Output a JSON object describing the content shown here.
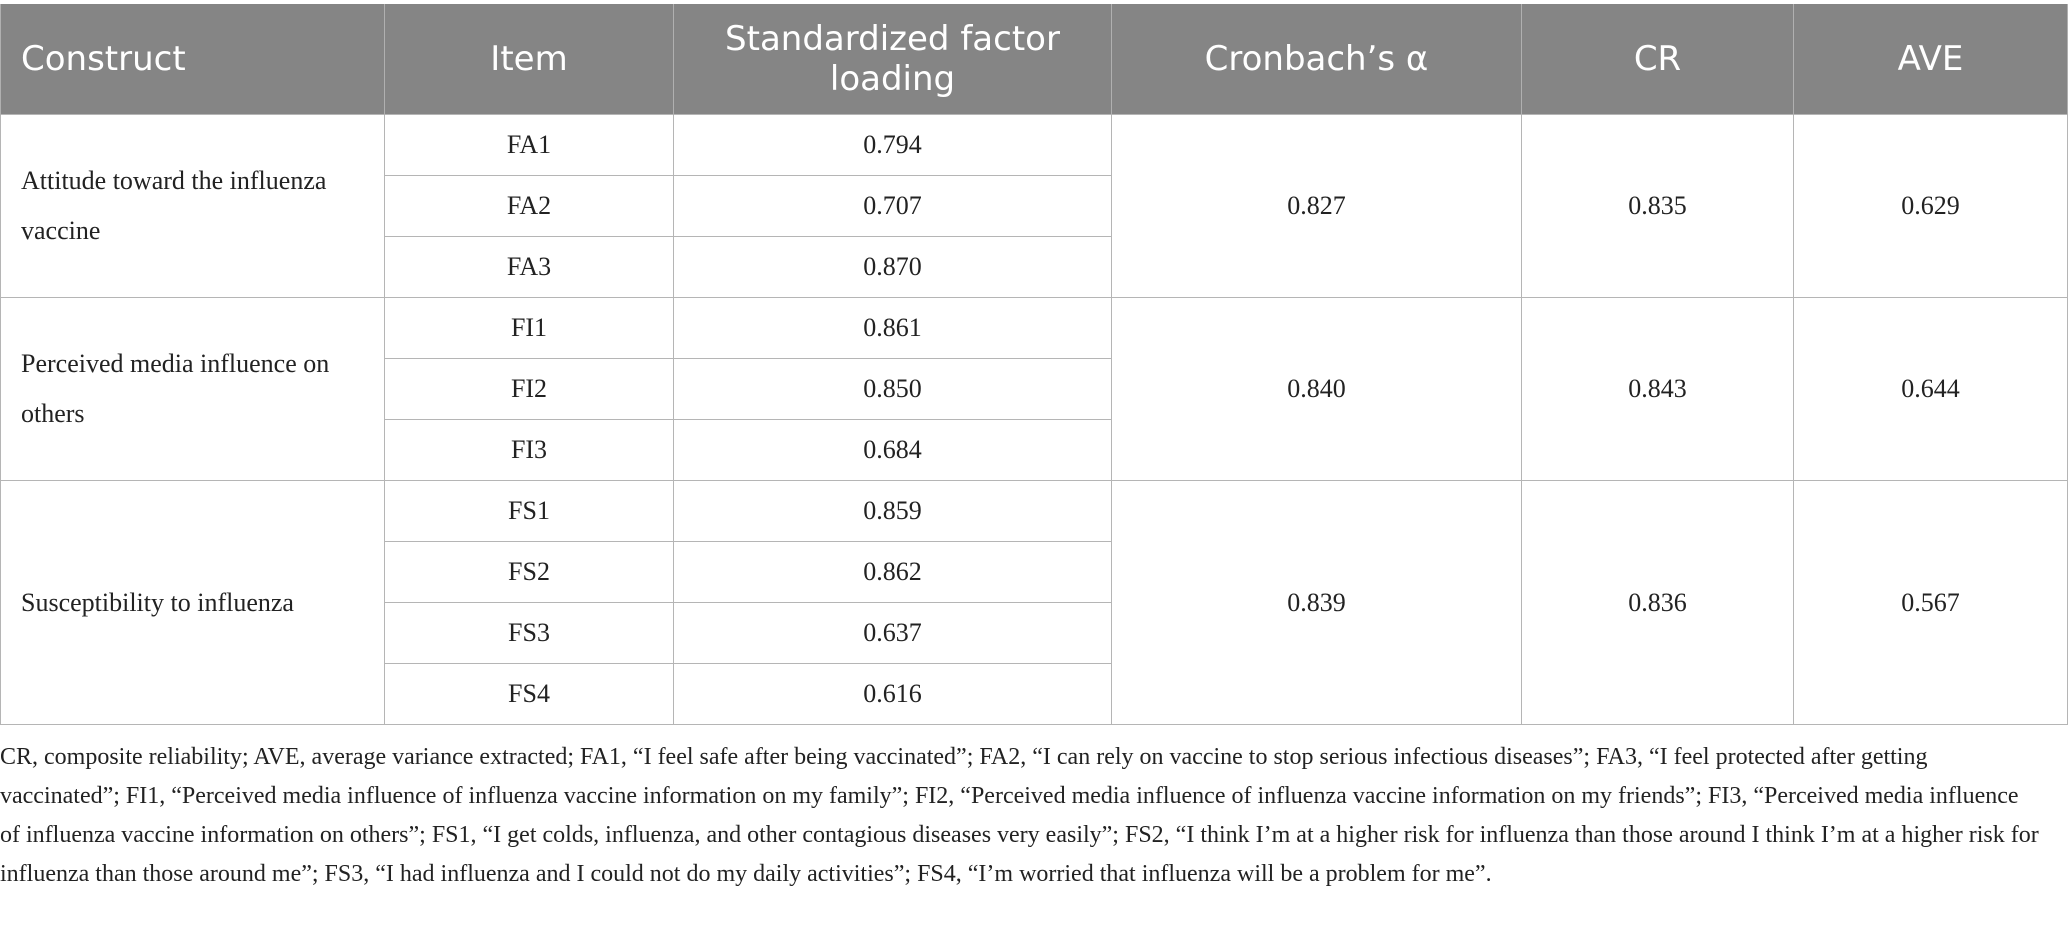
{
  "headers": {
    "construct": "Construct",
    "item": "Item",
    "loading_line1": "Standardized factor",
    "loading_line2": "loading",
    "alpha": "Cronbach’s α",
    "cr": "CR",
    "ave": "AVE"
  },
  "groups": [
    {
      "construct": "Attitude toward the influenza vaccine",
      "alpha": "0.827",
      "cr": "0.835",
      "ave": "0.629",
      "items": [
        {
          "item": "FA1",
          "loading": "0.794"
        },
        {
          "item": "FA2",
          "loading": "0.707"
        },
        {
          "item": "FA3",
          "loading": "0.870"
        }
      ]
    },
    {
      "construct": "Perceived media influence on others",
      "alpha": "0.840",
      "cr": "0.843",
      "ave": "0.644",
      "items": [
        {
          "item": "FI1",
          "loading": "0.861"
        },
        {
          "item": "FI2",
          "loading": "0.850"
        },
        {
          "item": "FI3",
          "loading": "0.684"
        }
      ]
    },
    {
      "construct": "Susceptibility to influenza",
      "alpha": "0.839",
      "cr": "0.836",
      "ave": "0.567",
      "items": [
        {
          "item": "FS1",
          "loading": "0.859"
        },
        {
          "item": "FS2",
          "loading": "0.862"
        },
        {
          "item": "FS3",
          "loading": "0.637"
        },
        {
          "item": "FS4",
          "loading": "0.616"
        }
      ]
    }
  ],
  "footnote": "CR, composite reliability; AVE, average variance extracted; FA1, “I feel safe after being vaccinated”; FA2, “I can rely on vaccine to stop serious infectious diseases”; FA3, “I feel protected after getting vaccinated”; FI1, “Perceived media influence of influenza vaccine information on my family”; FI2, “Perceived media influence of influenza vaccine information on my friends”; FI3, “Perceived media influence of influenza vaccine information on others”; FS1, “I get colds, influenza, and other contagious diseases very easily”; FS2, “I think I’m at a higher risk for influenza than those around I think I’m at a higher risk for influenza than those around me”; FS3, “I had influenza and I could not do my daily activities”; FS4, “I’m worried that influenza will be a problem for me”."
}
